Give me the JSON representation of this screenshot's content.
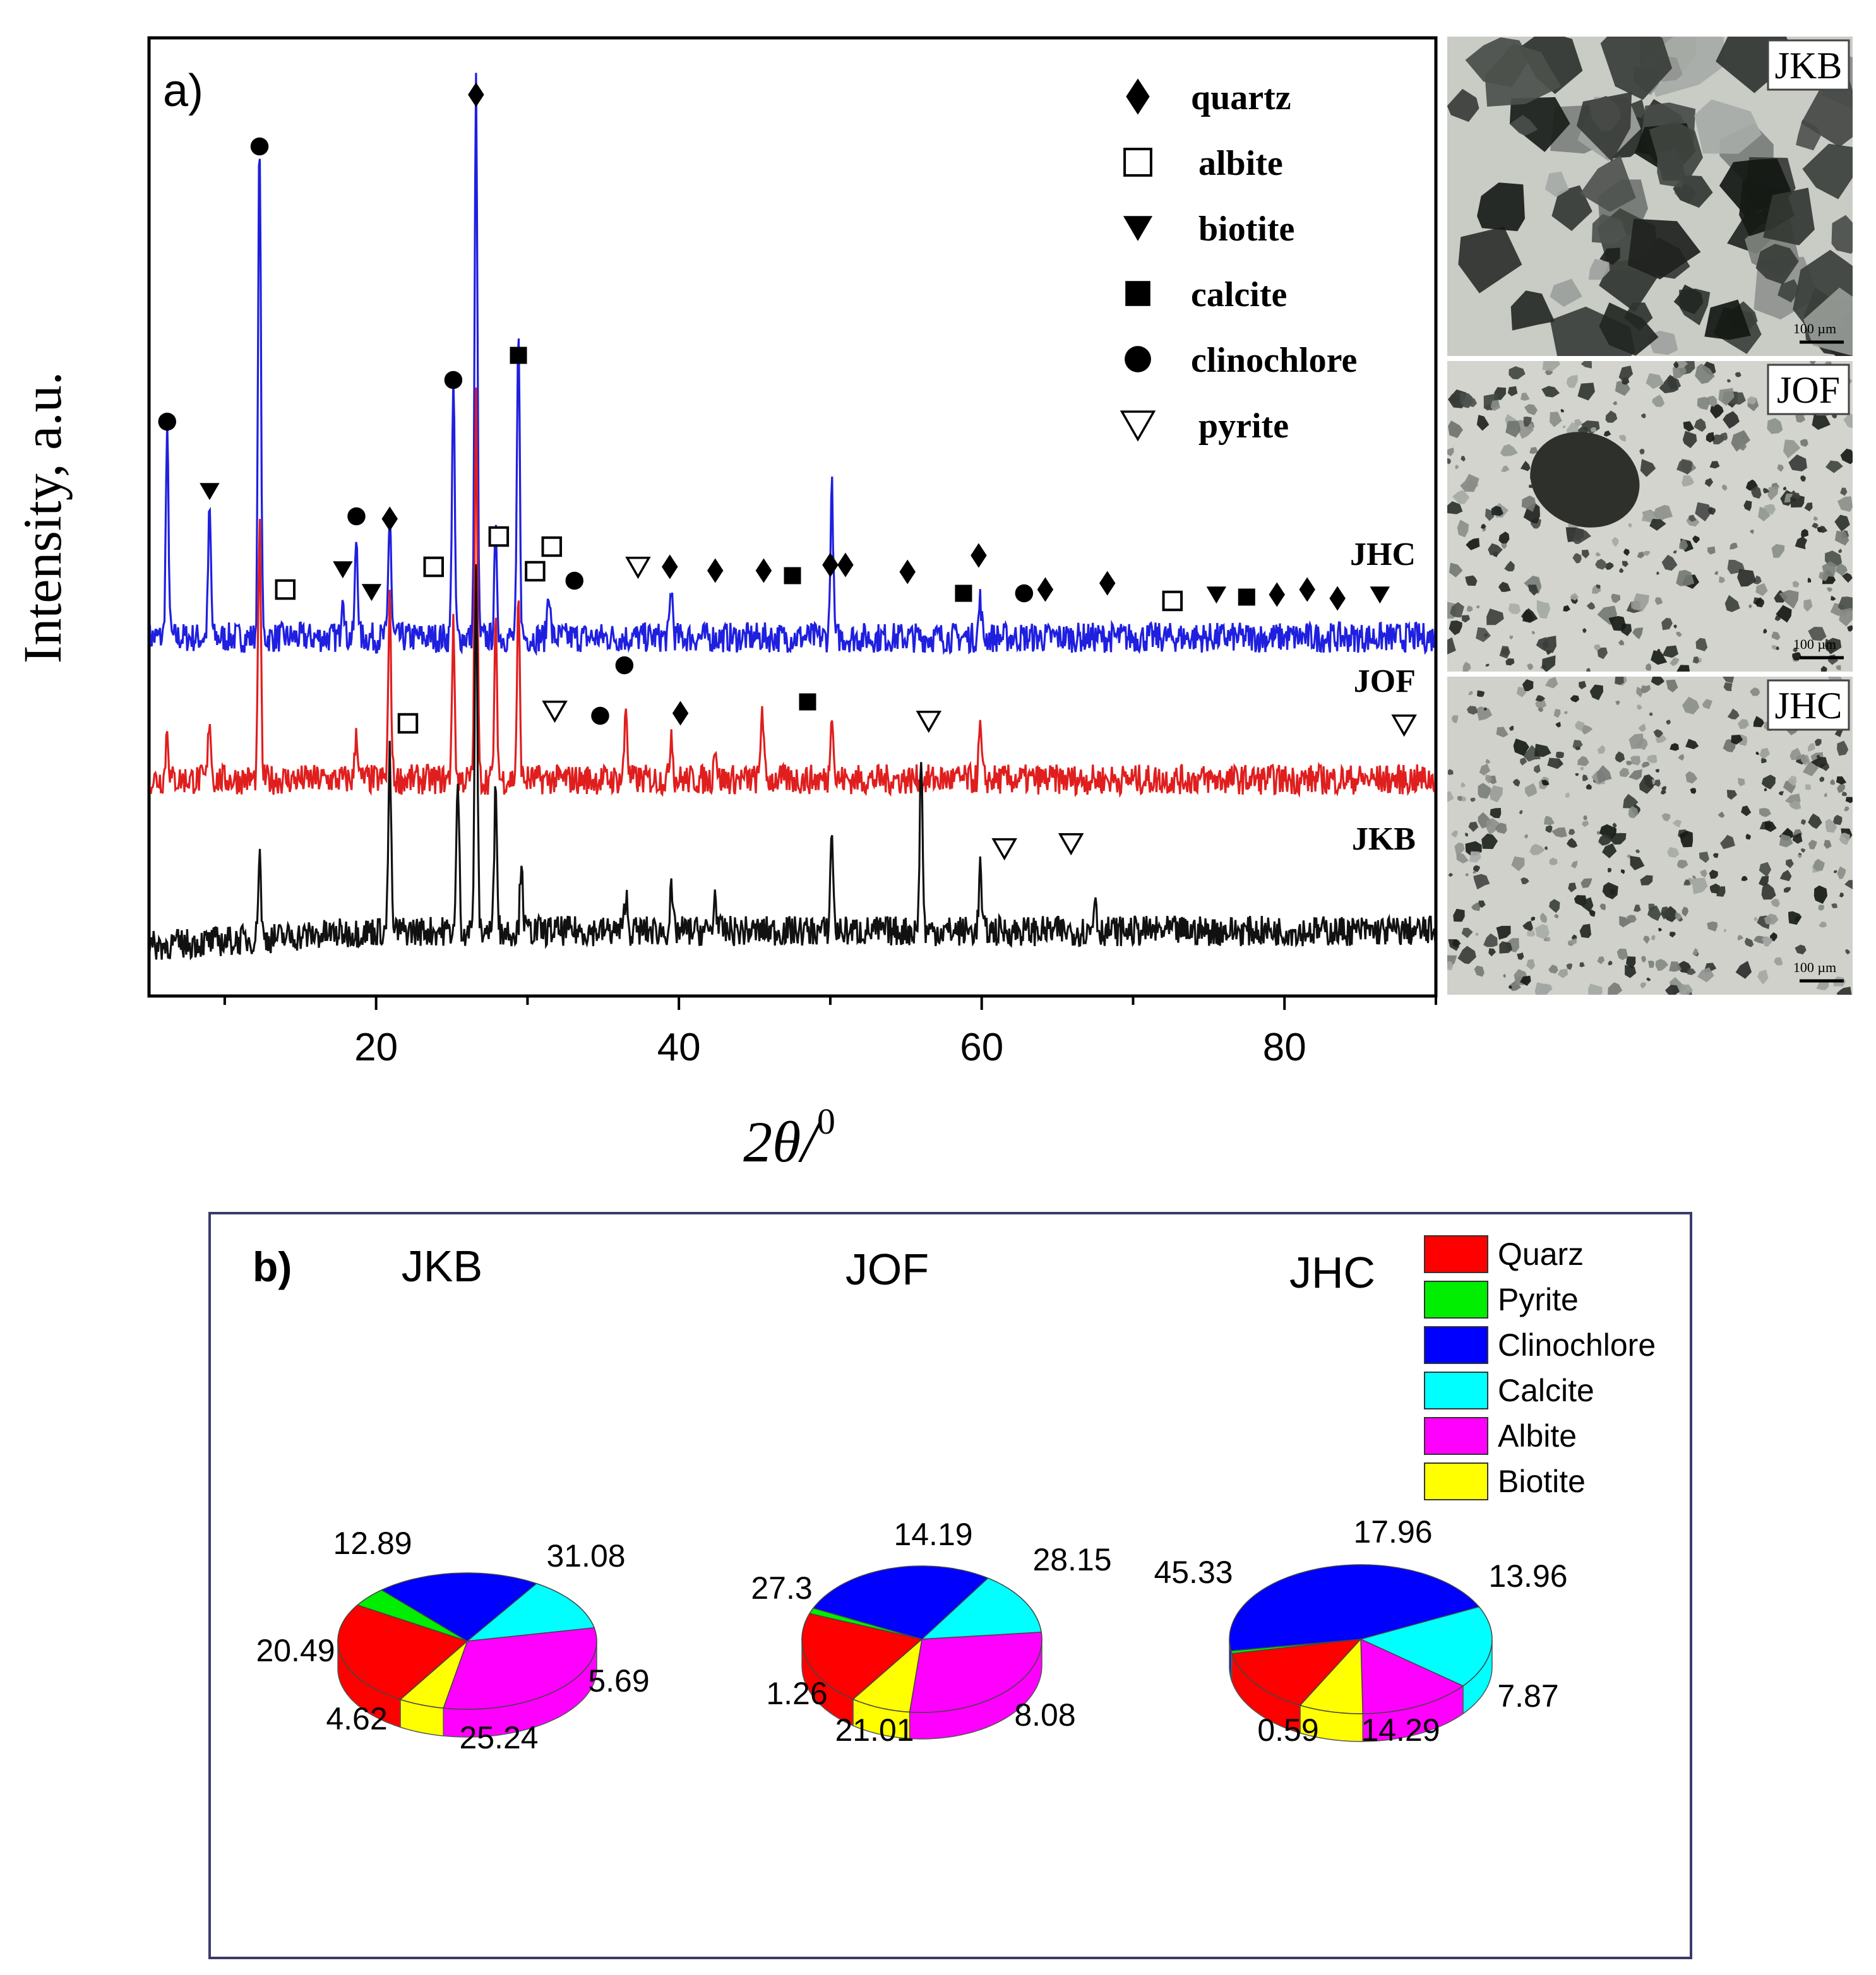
{
  "panel_a": {
    "panel_label": "a)",
    "ylabel": "Intensity, a.u.",
    "xlabel_main": "2θ/",
    "xlabel_sup": "0"
  },
  "panel_b": {
    "panel_label": "b)"
  },
  "micrographs": [
    {
      "label": "JKB",
      "scale": "100 µm"
    },
    {
      "label": "JOF",
      "scale": "100 µm"
    },
    {
      "label": "JHC",
      "scale": "100 µm"
    }
  ],
  "colors": {
    "JHC": "#1f1fe0",
    "JOF": "#e01e1e",
    "JKB": "#111111",
    "Quarz": "#ff0000",
    "Pyrite": "#00ee00",
    "Clinochlore": "#0000ff",
    "Calcite": "#00ffff",
    "Albite": "#ff00ff",
    "Biotite": "#ffff00"
  },
  "chart_data": [
    {
      "type": "line",
      "title": "",
      "xlabel": "2θ/0",
      "ylabel": "Intensity, a.u.",
      "xlim": [
        5,
        90
      ],
      "xticks": [
        20,
        40,
        60,
        80
      ],
      "legend": [
        "quartz",
        "albite",
        "biotite",
        "calcite",
        "clinochlore",
        "pyrite"
      ],
      "legend_symbols": [
        "diamond",
        "open-square",
        "down-triangle",
        "square",
        "circle",
        "open-down-triangle"
      ],
      "series": [
        {
          "name": "JHC",
          "offset": 2,
          "peaks": [
            [
              6.2,
              8
            ],
            [
              9,
              5
            ],
            [
              12.3,
              20
            ],
            [
              17.8,
              2
            ],
            [
              18.7,
              4
            ],
            [
              20.9,
              5
            ],
            [
              25.1,
              10
            ],
            [
              26.6,
              22
            ],
            [
              27.9,
              4
            ],
            [
              29.4,
              12
            ],
            [
              31.4,
              2
            ],
            [
              39.5,
              2
            ],
            [
              50.1,
              6
            ],
            [
              59.9,
              1.5
            ]
          ],
          "markers": [
            {
              "x": 6.2,
              "s": "circle"
            },
            {
              "x": 9,
              "s": "down-triangle"
            },
            {
              "x": 12.3,
              "s": "circle"
            },
            {
              "x": 14,
              "s": "open-square"
            },
            {
              "x": 17.8,
              "s": "down-triangle"
            },
            {
              "x": 18.7,
              "s": "circle"
            },
            {
              "x": 19.7,
              "s": "down-triangle"
            },
            {
              "x": 20.9,
              "s": "diamond"
            },
            {
              "x": 23.8,
              "s": "open-square"
            },
            {
              "x": 25.1,
              "s": "circle"
            },
            {
              "x": 26.6,
              "s": "diamond"
            },
            {
              "x": 28.1,
              "s": "open-square"
            },
            {
              "x": 29.4,
              "s": "square"
            },
            {
              "x": 30.5,
              "s": "open-square"
            },
            {
              "x": 31.6,
              "s": "open-square"
            },
            {
              "x": 33.1,
              "s": "circle"
            },
            {
              "x": 37.3,
              "s": "open-down-triangle"
            },
            {
              "x": 39.4,
              "s": "diamond"
            },
            {
              "x": 42.4,
              "s": "diamond"
            },
            {
              "x": 45.6,
              "s": "diamond"
            },
            {
              "x": 47.5,
              "s": "square"
            },
            {
              "x": 50.0,
              "s": "diamond"
            },
            {
              "x": 51.0,
              "s": "diamond"
            },
            {
              "x": 55.1,
              "s": "diamond"
            },
            {
              "x": 58.8,
              "s": "square"
            },
            {
              "x": 59.8,
              "s": "diamond"
            },
            {
              "x": 62.8,
              "s": "circle"
            },
            {
              "x": 64.2,
              "s": "diamond"
            },
            {
              "x": 68.3,
              "s": "diamond"
            },
            {
              "x": 72.6,
              "s": "open-square"
            },
            {
              "x": 75.5,
              "s": "down-triangle"
            },
            {
              "x": 77.5,
              "s": "square"
            },
            {
              "x": 79.5,
              "s": "diamond"
            },
            {
              "x": 81.5,
              "s": "diamond"
            },
            {
              "x": 83.5,
              "s": "diamond"
            },
            {
              "x": 86.3,
              "s": "down-triangle"
            }
          ]
        },
        {
          "name": "JOF",
          "offset": 1,
          "peaks": [
            [
              6.2,
              2
            ],
            [
              9,
              2.5
            ],
            [
              12.3,
              10
            ],
            [
              18.7,
              2
            ],
            [
              20.9,
              7
            ],
            [
              25.1,
              6
            ],
            [
              26.6,
              15
            ],
            [
              27.9,
              6
            ],
            [
              29.4,
              7
            ],
            [
              36.5,
              3
            ],
            [
              39.5,
              2
            ],
            [
              42.4,
              1.5
            ],
            [
              45.5,
              3
            ],
            [
              50.1,
              3
            ],
            [
              59.9,
              2
            ]
          ],
          "markers": [
            {
              "x": 22.1,
              "s": "open-square"
            },
            {
              "x": 31.8,
              "s": "open-down-triangle"
            },
            {
              "x": 34.8,
              "s": "circle"
            },
            {
              "x": 36.4,
              "s": "circle"
            },
            {
              "x": 40.1,
              "s": "diamond"
            },
            {
              "x": 48.5,
              "s": "square"
            },
            {
              "x": 56.5,
              "s": "open-down-triangle"
            },
            {
              "x": 87.9,
              "s": "open-down-triangle"
            }
          ]
        },
        {
          "name": "JKB",
          "offset": 0,
          "peaks": [
            [
              12.3,
              3.5
            ],
            [
              20.9,
              7
            ],
            [
              25.4,
              6
            ],
            [
              26.6,
              14
            ],
            [
              27.9,
              6
            ],
            [
              29.6,
              3
            ],
            [
              36.5,
              1.5
            ],
            [
              39.5,
              1.5
            ],
            [
              42.4,
              1.5
            ],
            [
              50.1,
              4
            ],
            [
              56.0,
              7
            ],
            [
              59.9,
              2.5
            ],
            [
              67.5,
              1.5
            ]
          ],
          "markers": [
            {
              "x": 61.5,
              "s": "open-down-triangle"
            },
            {
              "x": 65.9,
              "s": "open-down-triangle"
            }
          ]
        }
      ]
    },
    {
      "type": "pie",
      "title": "JKB",
      "categories": [
        "Quarz",
        "Pyrite",
        "Clinochlore",
        "Calcite",
        "Albite",
        "Biotite"
      ],
      "values": [
        25.24,
        4.62,
        20.49,
        12.89,
        31.08,
        5.69
      ]
    },
    {
      "type": "pie",
      "title": "JOF",
      "categories": [
        "Quarz",
        "Pyrite",
        "Clinochlore",
        "Calcite",
        "Albite",
        "Biotite"
      ],
      "values": [
        21.01,
        1.26,
        27.3,
        14.19,
        28.15,
        8.08
      ]
    },
    {
      "type": "pie",
      "title": "JHC",
      "categories": [
        "Quarz",
        "Pyrite",
        "Clinochlore",
        "Calcite",
        "Albite",
        "Biotite"
      ],
      "values": [
        14.29,
        0.59,
        45.33,
        17.96,
        13.96,
        7.87
      ]
    }
  ]
}
